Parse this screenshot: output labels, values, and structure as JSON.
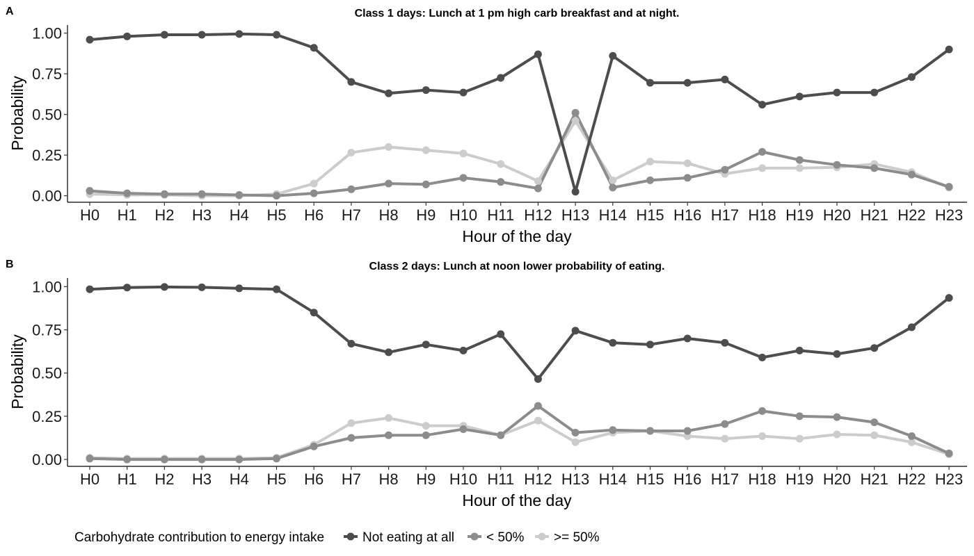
{
  "chart_data": [
    {
      "type": "line",
      "tag": "A",
      "title": "Class 1 days: Lunch at 1 pm high carb breakfast and at night.",
      "xlabel": "Hour of the day",
      "ylabel": "Probability",
      "ylim": [
        -0.04,
        1.05
      ],
      "yticks": [
        "0.00",
        "0.25",
        "0.50",
        "0.75",
        "1.00"
      ],
      "grid": false,
      "categories": [
        "H0",
        "H1",
        "H2",
        "H3",
        "H4",
        "H5",
        "H6",
        "H7",
        "H8",
        "H9",
        "H10",
        "H11",
        "H12",
        "H13",
        "H14",
        "H15",
        "H16",
        "H17",
        "H18",
        "H19",
        "H20",
        "H21",
        "H22",
        "H23"
      ],
      "series": [
        {
          "name": "Not eating at all",
          "color": "#4d4d4d",
          "values": [
            0.96,
            0.98,
            0.99,
            0.99,
            0.995,
            0.99,
            0.91,
            0.7,
            0.63,
            0.65,
            0.635,
            0.725,
            0.87,
            0.025,
            0.86,
            0.695,
            0.695,
            0.715,
            0.56,
            0.61,
            0.635,
            0.635,
            0.73,
            0.9
          ]
        },
        {
          "name": "< 50%",
          "color": "#8c8c8c",
          "values": [
            0.03,
            0.015,
            0.01,
            0.01,
            0.005,
            0.0,
            0.015,
            0.04,
            0.075,
            0.07,
            0.11,
            0.085,
            0.045,
            0.51,
            0.05,
            0.095,
            0.11,
            0.16,
            0.27,
            0.22,
            0.19,
            0.17,
            0.13,
            0.055
          ]
        },
        {
          "name": ">= 50%",
          "color": "#cccccc",
          "values": [
            0.01,
            0.005,
            0.005,
            0.0,
            0.0,
            0.01,
            0.075,
            0.265,
            0.3,
            0.28,
            0.26,
            0.195,
            0.09,
            0.46,
            0.095,
            0.21,
            0.2,
            0.135,
            0.17,
            0.17,
            0.175,
            0.195,
            0.145,
            0.05
          ]
        }
      ]
    },
    {
      "type": "line",
      "tag": "B",
      "title": "Class 2 days: Lunch at noon lower probability of eating.",
      "xlabel": "Hour of the day",
      "ylabel": "Probability",
      "ylim": [
        -0.04,
        1.05
      ],
      "yticks": [
        "0.00",
        "0.25",
        "0.50",
        "0.75",
        "1.00"
      ],
      "grid": false,
      "categories": [
        "H0",
        "H1",
        "H2",
        "H3",
        "H4",
        "H5",
        "H6",
        "H7",
        "H8",
        "H9",
        "H10",
        "H11",
        "H12",
        "H13",
        "H14",
        "H15",
        "H16",
        "H17",
        "H18",
        "H19",
        "H20",
        "H21",
        "H22",
        "H23"
      ],
      "series": [
        {
          "name": "Not eating at all",
          "color": "#4d4d4d",
          "values": [
            0.985,
            0.995,
            0.998,
            0.996,
            0.99,
            0.985,
            0.85,
            0.67,
            0.62,
            0.665,
            0.63,
            0.725,
            0.465,
            0.745,
            0.675,
            0.665,
            0.7,
            0.675,
            0.59,
            0.63,
            0.61,
            0.645,
            0.765,
            0.935
          ]
        },
        {
          "name": "< 50%",
          "color": "#8c8c8c",
          "values": [
            0.005,
            0.0,
            0.0,
            0.0,
            0.0,
            0.005,
            0.075,
            0.125,
            0.14,
            0.14,
            0.175,
            0.14,
            0.31,
            0.155,
            0.17,
            0.165,
            0.165,
            0.205,
            0.28,
            0.25,
            0.245,
            0.215,
            0.135,
            0.035
          ]
        },
        {
          "name": ">= 50%",
          "color": "#cccccc",
          "values": [
            0.01,
            0.005,
            0.005,
            0.005,
            0.005,
            0.01,
            0.085,
            0.21,
            0.24,
            0.195,
            0.195,
            0.14,
            0.225,
            0.1,
            0.155,
            0.165,
            0.135,
            0.12,
            0.135,
            0.12,
            0.145,
            0.14,
            0.1,
            0.03
          ]
        }
      ]
    }
  ],
  "legend": {
    "title": "Carbohydrate contribution to energy intake",
    "position": "bottom",
    "items": [
      {
        "label": "Not eating at all",
        "color": "#4d4d4d"
      },
      {
        "label": "< 50%",
        "color": "#8c8c8c"
      },
      {
        "label": ">= 50%",
        "color": "#cccccc"
      }
    ]
  }
}
